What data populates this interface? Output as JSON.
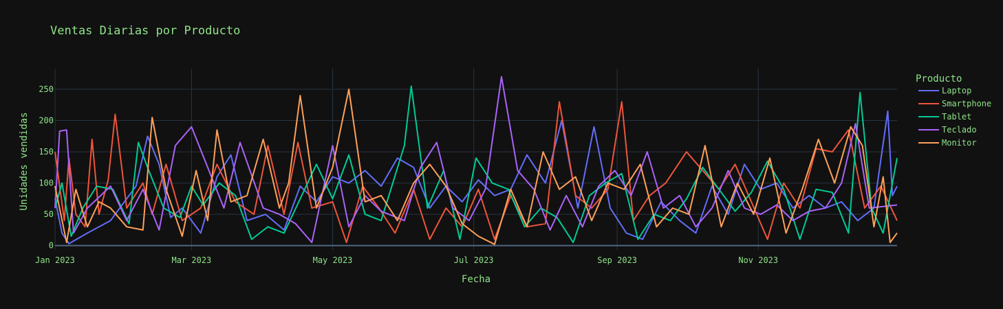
{
  "chart_data": {
    "type": "line",
    "title": "Ventas Diarias por Producto",
    "xlabel": "Fecha",
    "ylabel": "Unidades vendidas",
    "x_ticks": [
      "Jan 2023",
      "Mar 2023",
      "May 2023",
      "Jul 2023",
      "Sep 2023",
      "Nov 2023"
    ],
    "y_ticks": [
      "0",
      "50",
      "100",
      "150",
      "200",
      "250"
    ],
    "ylim": [
      -7,
      283
    ],
    "xlim": [
      "2023-01-01",
      "2023-12-31"
    ],
    "grid": true,
    "legend": {
      "title": "Producto",
      "placement": "right"
    },
    "colors": {
      "background": "#111111",
      "grid": "#283442",
      "text": "#8fe388"
    },
    "series": [
      {
        "name": "Laptop",
        "color": "#636efa",
        "points": [
          [
            "2023-01-01",
            75
          ],
          [
            "2023-01-04",
            20
          ],
          [
            "2023-01-07",
            3
          ],
          [
            "2023-01-15",
            20
          ],
          [
            "2023-01-25",
            40
          ],
          [
            "2023-02-05",
            95
          ],
          [
            "2023-02-10",
            175
          ],
          [
            "2023-02-15",
            130
          ],
          [
            "2023-02-20",
            45
          ],
          [
            "2023-02-25",
            60
          ],
          [
            "2023-03-05",
            20
          ],
          [
            "2023-03-12",
            110
          ],
          [
            "2023-03-18",
            145
          ],
          [
            "2023-03-25",
            40
          ],
          [
            "2023-04-02",
            50
          ],
          [
            "2023-04-10",
            25
          ],
          [
            "2023-04-17",
            95
          ],
          [
            "2023-04-24",
            70
          ],
          [
            "2023-05-01",
            110
          ],
          [
            "2023-05-08",
            100
          ],
          [
            "2023-05-15",
            120
          ],
          [
            "2023-05-22",
            95
          ],
          [
            "2023-05-29",
            140
          ],
          [
            "2023-06-05",
            125
          ],
          [
            "2023-06-12",
            60
          ],
          [
            "2023-06-19",
            95
          ],
          [
            "2023-06-26",
            70
          ],
          [
            "2023-07-03",
            105
          ],
          [
            "2023-07-10",
            80
          ],
          [
            "2023-07-17",
            90
          ],
          [
            "2023-07-24",
            145
          ],
          [
            "2023-08-01",
            100
          ],
          [
            "2023-08-08",
            200
          ],
          [
            "2023-08-15",
            60
          ],
          [
            "2023-08-22",
            190
          ],
          [
            "2023-08-29",
            60
          ],
          [
            "2023-09-05",
            20
          ],
          [
            "2023-09-12",
            10
          ],
          [
            "2023-09-20",
            70
          ],
          [
            "2023-09-28",
            40
          ],
          [
            "2023-10-05",
            20
          ],
          [
            "2023-10-12",
            95
          ],
          [
            "2023-10-19",
            50
          ],
          [
            "2023-10-26",
            130
          ],
          [
            "2023-11-02",
            90
          ],
          [
            "2023-11-09",
            100
          ],
          [
            "2023-11-16",
            60
          ],
          [
            "2023-11-23",
            80
          ],
          [
            "2023-11-30",
            60
          ],
          [
            "2023-12-07",
            70
          ],
          [
            "2023-12-14",
            40
          ],
          [
            "2023-12-21",
            60
          ],
          [
            "2023-12-27",
            215
          ],
          [
            "2023-12-29",
            80
          ],
          [
            "2023-12-31",
            95
          ]
        ]
      },
      {
        "name": "Smartphone",
        "color": "#ef553b",
        "points": [
          [
            "2023-01-01",
            150
          ],
          [
            "2023-01-03",
            95
          ],
          [
            "2023-01-05",
            40
          ],
          [
            "2023-01-07",
            140
          ],
          [
            "2023-01-10",
            50
          ],
          [
            "2023-01-14",
            30
          ],
          [
            "2023-01-17",
            170
          ],
          [
            "2023-01-20",
            50
          ],
          [
            "2023-01-24",
            105
          ],
          [
            "2023-01-27",
            210
          ],
          [
            "2023-02-01",
            60
          ],
          [
            "2023-02-08",
            100
          ],
          [
            "2023-02-12",
            50
          ],
          [
            "2023-02-18",
            130
          ],
          [
            "2023-02-25",
            40
          ],
          [
            "2023-03-05",
            60
          ],
          [
            "2023-03-12",
            130
          ],
          [
            "2023-03-20",
            70
          ],
          [
            "2023-03-28",
            50
          ],
          [
            "2023-04-03",
            160
          ],
          [
            "2023-04-10",
            50
          ],
          [
            "2023-04-16",
            165
          ],
          [
            "2023-04-22",
            60
          ],
          [
            "2023-05-01",
            70
          ],
          [
            "2023-05-07",
            5
          ],
          [
            "2023-05-14",
            95
          ],
          [
            "2023-05-21",
            60
          ],
          [
            "2023-05-28",
            20
          ],
          [
            "2023-06-05",
            90
          ],
          [
            "2023-06-12",
            10
          ],
          [
            "2023-06-19",
            60
          ],
          [
            "2023-06-26",
            30
          ],
          [
            "2023-07-03",
            90
          ],
          [
            "2023-07-10",
            10
          ],
          [
            "2023-07-17",
            80
          ],
          [
            "2023-07-24",
            30
          ],
          [
            "2023-08-01",
            35
          ],
          [
            "2023-08-07",
            230
          ],
          [
            "2023-08-14",
            80
          ],
          [
            "2023-08-21",
            60
          ],
          [
            "2023-08-28",
            90
          ],
          [
            "2023-09-03",
            230
          ],
          [
            "2023-09-08",
            40
          ],
          [
            "2023-09-15",
            80
          ],
          [
            "2023-09-22",
            100
          ],
          [
            "2023-10-01",
            150
          ],
          [
            "2023-10-08",
            120
          ],
          [
            "2023-10-15",
            90
          ],
          [
            "2023-10-22",
            130
          ],
          [
            "2023-10-29",
            70
          ],
          [
            "2023-11-05",
            10
          ],
          [
            "2023-11-12",
            100
          ],
          [
            "2023-11-19",
            60
          ],
          [
            "2023-11-26",
            155
          ],
          [
            "2023-12-03",
            150
          ],
          [
            "2023-12-10",
            185
          ],
          [
            "2023-12-17",
            60
          ],
          [
            "2023-12-24",
            95
          ],
          [
            "2023-12-31",
            40
          ]
        ]
      },
      {
        "name": "Tablet",
        "color": "#00cc96",
        "points": [
          [
            "2023-01-01",
            60
          ],
          [
            "2023-01-04",
            100
          ],
          [
            "2023-01-08",
            15
          ],
          [
            "2023-01-13",
            60
          ],
          [
            "2023-01-19",
            95
          ],
          [
            "2023-01-26",
            90
          ],
          [
            "2023-02-02",
            35
          ],
          [
            "2023-02-06",
            165
          ],
          [
            "2023-02-10",
            125
          ],
          [
            "2023-02-17",
            60
          ],
          [
            "2023-02-24",
            45
          ],
          [
            "2023-03-01",
            95
          ],
          [
            "2023-03-06",
            65
          ],
          [
            "2023-03-13",
            100
          ],
          [
            "2023-03-20",
            80
          ],
          [
            "2023-03-27",
            10
          ],
          [
            "2023-04-03",
            30
          ],
          [
            "2023-04-10",
            20
          ],
          [
            "2023-04-17",
            75
          ],
          [
            "2023-04-24",
            130
          ],
          [
            "2023-05-01",
            75
          ],
          [
            "2023-05-08",
            145
          ],
          [
            "2023-05-15",
            50
          ],
          [
            "2023-05-22",
            40
          ],
          [
            "2023-06-01",
            160
          ],
          [
            "2023-06-04",
            255
          ],
          [
            "2023-06-11",
            60
          ],
          [
            "2023-06-18",
            120
          ],
          [
            "2023-06-25",
            10
          ],
          [
            "2023-07-02",
            140
          ],
          [
            "2023-07-09",
            100
          ],
          [
            "2023-07-16",
            90
          ],
          [
            "2023-07-23",
            30
          ],
          [
            "2023-07-30",
            60
          ],
          [
            "2023-08-06",
            45
          ],
          [
            "2023-08-13",
            5
          ],
          [
            "2023-08-20",
            80
          ],
          [
            "2023-08-27",
            100
          ],
          [
            "2023-09-03",
            115
          ],
          [
            "2023-09-10",
            10
          ],
          [
            "2023-09-17",
            50
          ],
          [
            "2023-09-24",
            40
          ],
          [
            "2023-10-01",
            75
          ],
          [
            "2023-10-08",
            125
          ],
          [
            "2023-10-15",
            90
          ],
          [
            "2023-10-22",
            55
          ],
          [
            "2023-10-29",
            85
          ],
          [
            "2023-11-05",
            135
          ],
          [
            "2023-11-12",
            90
          ],
          [
            "2023-11-19",
            10
          ],
          [
            "2023-11-26",
            90
          ],
          [
            "2023-12-03",
            85
          ],
          [
            "2023-12-10",
            20
          ],
          [
            "2023-12-15",
            245
          ],
          [
            "2023-12-20",
            60
          ],
          [
            "2023-12-25",
            20
          ],
          [
            "2023-12-31",
            140
          ]
        ]
      },
      {
        "name": "Teclado",
        "color": "#ab63fa",
        "points": [
          [
            "2023-01-01",
            60
          ],
          [
            "2023-01-03",
            183
          ],
          [
            "2023-01-06",
            185
          ],
          [
            "2023-01-09",
            20
          ],
          [
            "2023-01-15",
            60
          ],
          [
            "2023-01-25",
            95
          ],
          [
            "2023-02-01",
            40
          ],
          [
            "2023-02-08",
            90
          ],
          [
            "2023-02-15",
            25
          ],
          [
            "2023-02-22",
            160
          ],
          [
            "2023-03-01",
            190
          ],
          [
            "2023-03-08",
            125
          ],
          [
            "2023-03-15",
            60
          ],
          [
            "2023-03-22",
            165
          ],
          [
            "2023-04-01",
            60
          ],
          [
            "2023-04-08",
            50
          ],
          [
            "2023-04-15",
            35
          ],
          [
            "2023-04-22",
            5
          ],
          [
            "2023-05-01",
            160
          ],
          [
            "2023-05-08",
            30
          ],
          [
            "2023-05-15",
            80
          ],
          [
            "2023-05-22",
            55
          ],
          [
            "2023-06-01",
            40
          ],
          [
            "2023-06-08",
            125
          ],
          [
            "2023-06-15",
            165
          ],
          [
            "2023-06-22",
            60
          ],
          [
            "2023-06-29",
            40
          ],
          [
            "2023-07-06",
            90
          ],
          [
            "2023-07-13",
            270
          ],
          [
            "2023-07-20",
            120
          ],
          [
            "2023-07-27",
            90
          ],
          [
            "2023-08-03",
            25
          ],
          [
            "2023-08-10",
            80
          ],
          [
            "2023-08-17",
            30
          ],
          [
            "2023-08-24",
            95
          ],
          [
            "2023-08-31",
            120
          ],
          [
            "2023-09-07",
            80
          ],
          [
            "2023-09-14",
            150
          ],
          [
            "2023-09-21",
            60
          ],
          [
            "2023-09-28",
            80
          ],
          [
            "2023-10-05",
            30
          ],
          [
            "2023-10-12",
            60
          ],
          [
            "2023-10-19",
            120
          ],
          [
            "2023-10-26",
            60
          ],
          [
            "2023-11-02",
            50
          ],
          [
            "2023-11-09",
            65
          ],
          [
            "2023-11-16",
            40
          ],
          [
            "2023-11-23",
            55
          ],
          [
            "2023-11-30",
            60
          ],
          [
            "2023-12-07",
            100
          ],
          [
            "2023-12-13",
            195
          ],
          [
            "2023-12-19",
            60
          ],
          [
            "2023-12-31",
            65
          ]
        ]
      },
      {
        "name": "Monitor",
        "color": "#ffa15a",
        "points": [
          [
            "2023-01-01",
            95
          ],
          [
            "2023-01-06",
            5
          ],
          [
            "2023-01-10",
            90
          ],
          [
            "2023-01-15",
            30
          ],
          [
            "2023-01-20",
            70
          ],
          [
            "2023-01-25",
            60
          ],
          [
            "2023-02-01",
            30
          ],
          [
            "2023-02-08",
            25
          ],
          [
            "2023-02-12",
            205
          ],
          [
            "2023-02-18",
            90
          ],
          [
            "2023-02-25",
            15
          ],
          [
            "2023-03-03",
            120
          ],
          [
            "2023-03-08",
            40
          ],
          [
            "2023-03-12",
            185
          ],
          [
            "2023-03-18",
            70
          ],
          [
            "2023-03-25",
            80
          ],
          [
            "2023-04-01",
            170
          ],
          [
            "2023-04-08",
            60
          ],
          [
            "2023-04-12",
            100
          ],
          [
            "2023-04-17",
            240
          ],
          [
            "2023-04-24",
            60
          ],
          [
            "2023-05-01",
            125
          ],
          [
            "2023-05-08",
            250
          ],
          [
            "2023-05-15",
            70
          ],
          [
            "2023-05-22",
            80
          ],
          [
            "2023-05-29",
            40
          ],
          [
            "2023-06-05",
            100
          ],
          [
            "2023-06-12",
            130
          ],
          [
            "2023-06-19",
            95
          ],
          [
            "2023-06-26",
            35
          ],
          [
            "2023-07-03",
            15
          ],
          [
            "2023-07-10",
            2
          ],
          [
            "2023-07-17",
            90
          ],
          [
            "2023-07-24",
            30
          ],
          [
            "2023-07-31",
            150
          ],
          [
            "2023-08-07",
            90
          ],
          [
            "2023-08-14",
            110
          ],
          [
            "2023-08-21",
            40
          ],
          [
            "2023-08-28",
            100
          ],
          [
            "2023-09-04",
            90
          ],
          [
            "2023-09-11",
            130
          ],
          [
            "2023-09-18",
            30
          ],
          [
            "2023-09-25",
            60
          ],
          [
            "2023-10-02",
            50
          ],
          [
            "2023-10-09",
            160
          ],
          [
            "2023-10-16",
            30
          ],
          [
            "2023-10-23",
            100
          ],
          [
            "2023-10-30",
            50
          ],
          [
            "2023-11-06",
            140
          ],
          [
            "2023-11-13",
            20
          ],
          [
            "2023-11-20",
            90
          ],
          [
            "2023-11-27",
            170
          ],
          [
            "2023-12-04",
            100
          ],
          [
            "2023-12-11",
            190
          ],
          [
            "2023-12-16",
            160
          ],
          [
            "2023-12-21",
            30
          ],
          [
            "2023-12-25",
            110
          ],
          [
            "2023-12-28",
            5
          ],
          [
            "2023-12-31",
            20
          ]
        ]
      }
    ]
  }
}
